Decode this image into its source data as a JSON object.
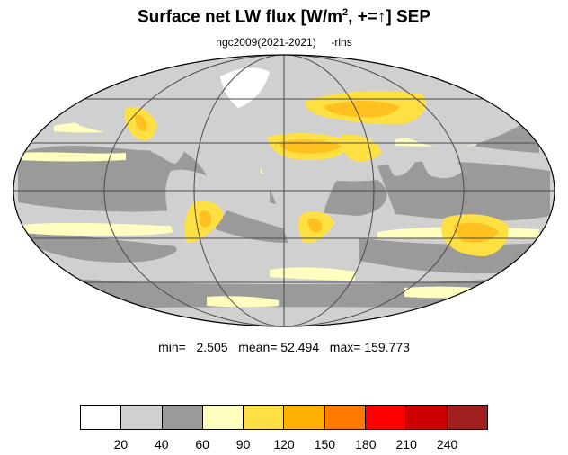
{
  "title": {
    "main": "Surface net LW flux [W/m",
    "superscript": "2",
    "tail": ", +=↑]  SEP"
  },
  "subtitle": {
    "case": "ngc2009(2021-2021)",
    "variable": "-rlns"
  },
  "stats": {
    "min_label": "min=",
    "min_value": "2.505",
    "mean_label": "mean=",
    "mean_value": "52.494",
    "max_label": "max=",
    "max_value": "159.773"
  },
  "colors": {
    "ocean_light": "#d0d0d0",
    "ocean_dark": "#9a9a9a",
    "band_pale": "#ffffc0",
    "land_yellow": "#ffe042",
    "land_orange": "#ffc020",
    "coast": "#000000",
    "grid": "#4a4a4a"
  },
  "legend": {
    "swatches": [
      "#ffffff",
      "#d0d0d0",
      "#9a9a9a",
      "#ffffc0",
      "#ffe042",
      "#ffb000",
      "#ff7a00",
      "#ff0000",
      "#cc0000",
      "#a02020"
    ],
    "ticks": [
      "20",
      "40",
      "60",
      "90",
      "120",
      "150",
      "180",
      "210",
      "240"
    ]
  }
}
